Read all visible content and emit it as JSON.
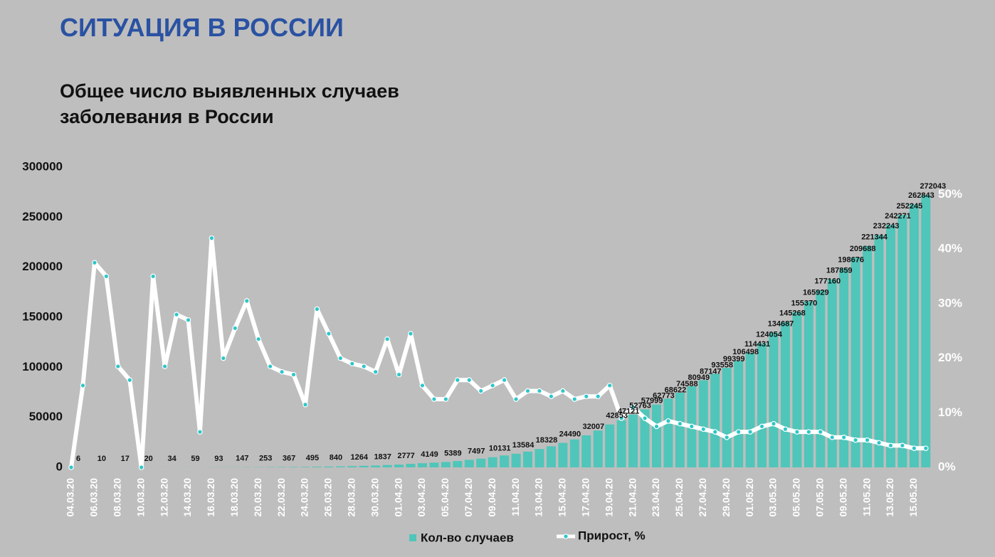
{
  "header": "СИТУАЦИЯ В РОССИИ",
  "chart_data": {
    "type": "combo",
    "title": [
      "Общее число выявленных случаев",
      "заболевания в России"
    ],
    "categories": [
      "04.03.20",
      null,
      "06.03.20",
      null,
      "08.03.20",
      null,
      "10.03.20",
      null,
      "12.03.20",
      null,
      "14.03.20",
      null,
      "16.03.20",
      null,
      "18.03.20",
      null,
      "20.03.20",
      null,
      "22.03.20",
      null,
      "24.03.20",
      null,
      "26.03.20",
      null,
      "28.03.20",
      null,
      "30.03.20",
      null,
      "01.04.20",
      null,
      "03.04.20",
      null,
      "05.04.20",
      null,
      "07.04.20",
      null,
      "09.04.20",
      null,
      "11.04.20",
      null,
      "13.04.20",
      null,
      "15.04.20",
      null,
      "17.04.20",
      null,
      "19.04.20",
      null,
      "21.04.20",
      null,
      "23.04.20",
      null,
      "25.04.20",
      null,
      "27.04.20",
      null,
      "29.04.20",
      null,
      "01.05.20",
      null,
      "03.05.20",
      null,
      "05.05.20",
      null,
      "07.05.20",
      null,
      "09.05.20",
      null,
      "11.05.20",
      null,
      "13.05.20",
      null,
      "15.05.20",
      null
    ],
    "series": [
      {
        "name": "Кол-во случаев",
        "type": "bar",
        "color": "#4fc6b9",
        "values": [
          6,
          7,
          10,
          14,
          17,
          17,
          20,
          28,
          34,
          45,
          59,
          63,
          93,
          114,
          147,
          199,
          253,
          306,
          367,
          438,
          495,
          658,
          840,
          1036,
          1264,
          1534,
          1837,
          2337,
          2777,
          3548,
          4149,
          4731,
          5389,
          6343,
          7497,
          8672,
          10131,
          11917,
          13584,
          15770,
          18328,
          21102,
          24490,
          27938,
          32007,
          36793,
          42853,
          47121,
          52763,
          57999,
          62773,
          68622,
          74588,
          80949,
          87147,
          93558,
          99399,
          106498,
          114431,
          124054,
          134687,
          145268,
          155370,
          165929,
          177160,
          187859,
          198676,
          209688,
          221344,
          232243,
          242271,
          252245,
          262843,
          272043
        ],
        "value_labels": [
          "6",
          null,
          "10",
          null,
          "17",
          null,
          "20",
          null,
          "34",
          null,
          "59",
          null,
          "93",
          null,
          "147",
          null,
          "253",
          null,
          "367",
          null,
          "495",
          null,
          "840",
          null,
          "1264",
          null,
          "1837",
          null,
          "2777",
          null,
          "4149",
          null,
          "5389",
          null,
          "7497",
          null,
          "10131",
          null,
          "13584",
          null,
          "18328",
          null,
          "24490",
          null,
          "32007",
          null,
          "42853",
          "47121",
          "52763",
          "57999",
          "62773",
          "68622",
          "74588",
          "80949",
          "87147",
          "93558",
          "99399",
          "106498",
          "114431",
          "124054",
          "134687",
          "145268",
          "155370",
          "165929",
          "177160",
          "187859",
          "198676",
          "209688",
          "221344",
          "232243",
          "242271",
          "252245",
          "262843",
          "272043"
        ]
      },
      {
        "name": "Прирост, %",
        "type": "line",
        "axis": "y2",
        "color": "#ffffff",
        "marker_color": "#2ec7c9",
        "values": [
          0,
          15,
          37.5,
          35,
          18.5,
          16,
          0,
          35,
          18.5,
          28,
          27,
          6.5,
          42,
          20,
          25.5,
          30.5,
          23.5,
          18.5,
          17.5,
          17,
          11.5,
          29,
          24.5,
          20,
          19,
          18.5,
          17.5,
          23.5,
          17,
          24.5,
          15,
          12.5,
          12.5,
          16,
          16,
          14,
          15,
          16,
          12.5,
          14,
          14,
          13,
          14,
          12.5,
          13,
          13,
          15,
          9,
          11,
          9,
          7.5,
          8.5,
          8,
          7.5,
          7,
          6.5,
          5.5,
          6.5,
          6.5,
          7.5,
          8,
          7,
          6.5,
          6.5,
          6.5,
          5.5,
          5.5,
          5,
          5,
          4.5,
          4,
          4,
          3.5,
          3.5
        ]
      }
    ],
    "ylim": [
      0,
      300000
    ],
    "yticks": [
      0,
      50000,
      100000,
      150000,
      200000,
      250000,
      300000
    ],
    "y2lim": [
      0,
      55
    ],
    "y2ticks": [
      {
        "value": 0,
        "label": "0%"
      },
      {
        "value": 10,
        "label": "10%"
      },
      {
        "value": 20,
        "label": "20%"
      },
      {
        "value": 30,
        "label": "30%"
      },
      {
        "value": 40,
        "label": "40%"
      },
      {
        "value": 50,
        "label": "50%"
      }
    ],
    "legend": "bottom"
  }
}
